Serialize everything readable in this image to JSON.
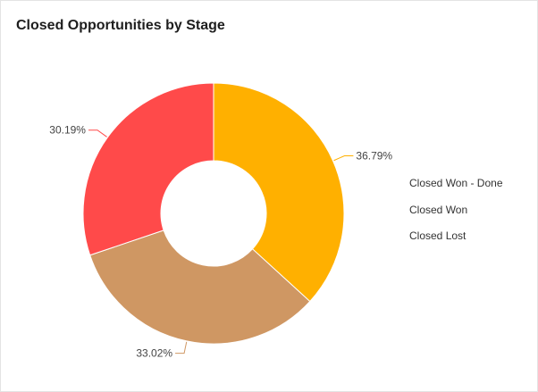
{
  "title": "Closed Opportunities by Stage",
  "chart_data": {
    "type": "pie",
    "donut": true,
    "title": "Closed Opportunities by Stage",
    "slices": [
      {
        "label": "Closed Won - Done",
        "value": 36.79,
        "display": "36.79%",
        "color": "#FFB000"
      },
      {
        "label": "Closed Won",
        "value": 33.02,
        "display": "33.02%",
        "color": "#CF9763"
      },
      {
        "label": "Closed Lost",
        "value": 30.19,
        "display": "30.19%",
        "color": "#FF4A4A"
      }
    ],
    "legend": {
      "position": "right",
      "items": [
        "Closed Won - Done",
        "Closed Won",
        "Closed Lost"
      ]
    }
  }
}
